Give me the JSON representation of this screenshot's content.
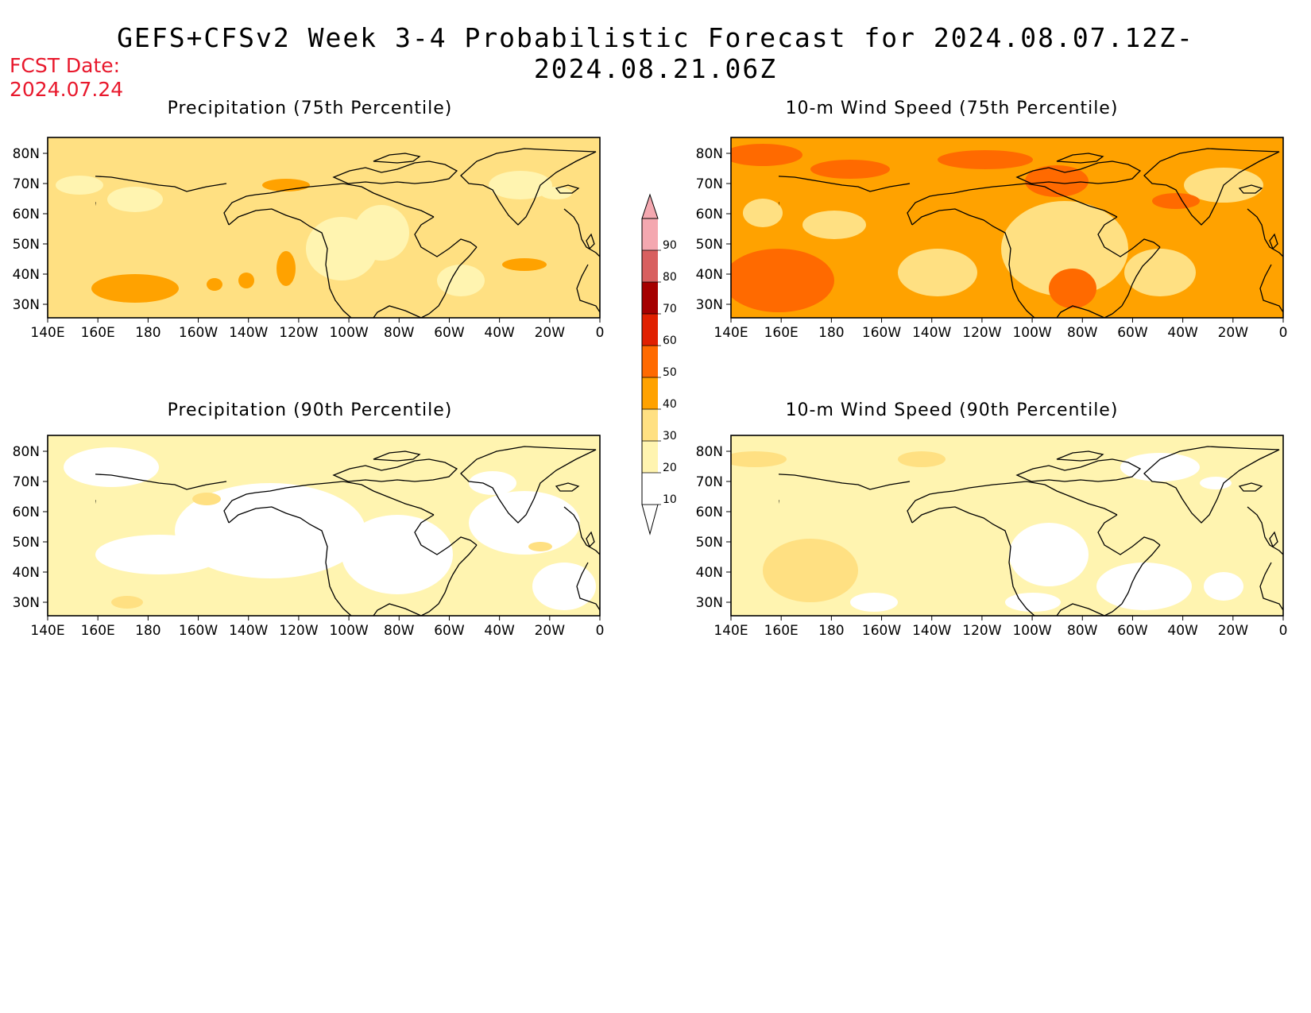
{
  "header": {
    "title": "GEFS+CFSv2 Week 3-4 Probabilistic Forecast for 2024.08.07.12Z-2024.08.21.06Z",
    "fcst_label": "FCST Date:",
    "fcst_date": "2024.07.24"
  },
  "axes": {
    "lon_labels": [
      "140E",
      "160E",
      "180",
      "160W",
      "140W",
      "120W",
      "100W",
      "80W",
      "60W",
      "40W",
      "20W",
      "0"
    ],
    "lat_labels": [
      "80N",
      "70N",
      "60N",
      "50N",
      "40N",
      "30N"
    ]
  },
  "colors": {
    "c10": "#ffffff",
    "c20": "#fff4b0",
    "c30": "#ffe082",
    "c40": "#ffa200",
    "c50": "#ff6a00",
    "c60": "#e02000",
    "c70": "#a50000",
    "c80": "#d86060",
    "c90": "#f4a8b0"
  },
  "panels": [
    {
      "title": "Precipitation (75th Percentile)",
      "base": "c30",
      "light": "c20",
      "dark": "c40"
    },
    {
      "title": "10-m Wind Speed (75th Percentile)",
      "base": "c40",
      "light": "c30",
      "dark": "c50"
    },
    {
      "title": "Precipitation (90th Percentile)",
      "base": "c20",
      "light": "c10",
      "dark": "c30"
    },
    {
      "title": "10-m Wind Speed (90th Percentile)",
      "base": "c20",
      "light": "c10",
      "dark": "c30"
    }
  ],
  "legend": {
    "levels": [
      "10",
      "20",
      "30",
      "40",
      "50",
      "60",
      "70",
      "80",
      "90"
    ]
  }
}
